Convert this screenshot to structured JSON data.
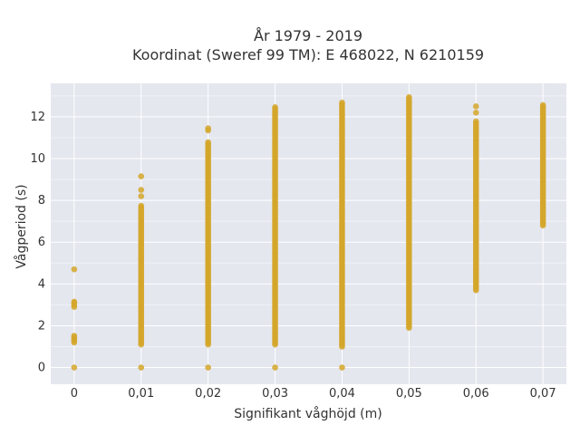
{
  "chart_data": {
    "type": "scatter",
    "title_line1": "År 1979 - 2019",
    "title_line2": "Koordinat (Sweref 99 TM): E 468022, N 6210159",
    "xlabel": "Signifikant våghöjd (m)",
    "ylabel": "Vågperiod (s)",
    "x_ticks": [
      "0",
      "0,01",
      "0,02",
      "0,03",
      "0,04",
      "0,05",
      "0,06",
      "0,07"
    ],
    "y_ticks": [
      "0",
      "2",
      "4",
      "6",
      "8",
      "10",
      "12"
    ],
    "xlim": [
      -0.0035,
      0.0735
    ],
    "ylim": [
      -0.8,
      13.6
    ],
    "grid": true,
    "marker_color": "#d4a62a",
    "background_color": "#e5e7ef",
    "series": [
      {
        "columns": [
          {
            "x": 0.0,
            "min": 1.2,
            "max": 1.55,
            "extra": [
              0.0,
              2.9,
              3.0,
              3.1,
              3.15,
              4.7
            ]
          },
          {
            "x": 0.01,
            "min": 1.1,
            "max": 7.8,
            "extra": [
              0.0,
              8.2,
              8.5,
              9.15
            ]
          },
          {
            "x": 0.02,
            "min": 1.1,
            "max": 10.8,
            "extra": [
              0.0,
              11.35,
              11.45
            ]
          },
          {
            "x": 0.03,
            "min": 1.1,
            "max": 12.5,
            "extra": [
              0.0
            ]
          },
          {
            "x": 0.04,
            "min": 1.0,
            "max": 12.7,
            "extra": [
              0.0
            ]
          },
          {
            "x": 0.05,
            "min": 1.9,
            "max": 13.0,
            "extra": []
          },
          {
            "x": 0.06,
            "min": 3.7,
            "max": 11.8,
            "extra": [
              12.2,
              12.5
            ]
          },
          {
            "x": 0.07,
            "min": 6.8,
            "max": 12.6,
            "extra": []
          }
        ]
      }
    ]
  }
}
